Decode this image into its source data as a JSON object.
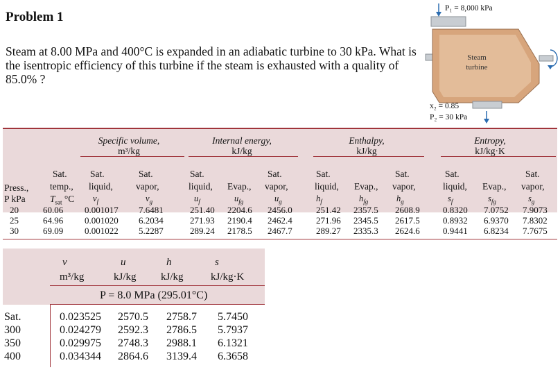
{
  "problem": {
    "title": "Problem 1",
    "text": "Steam at 8.00 MPa and 400°C is expanded in an adiabatic turbine to 30 kPa. What is the isentropic efficiency of this turbine if the steam is exhausted with a quality of 85.0% ?"
  },
  "diagram": {
    "inlet_label": "P₁ = 8,000 kPa",
    "body_label_1": "Steam",
    "body_label_2": "turbine",
    "outlet_quality": "x₂ = 0.85",
    "outlet_pressure": "P₂ = 30 kPa"
  },
  "sat_table": {
    "groups": {
      "specific_volume": "Specific volume,",
      "specific_volume_unit": "m³/kg",
      "internal_energy": "Internal energy,",
      "internal_energy_unit": "kJ/kg",
      "enthalpy": "Enthalpy,",
      "enthalpy_unit": "kJ/kg",
      "entropy": "Entropy,",
      "entropy_unit": "kJ/kg·K"
    },
    "col_heads": {
      "press_1": "Press.,",
      "press_2": "P kPa",
      "temp_1": "Sat.",
      "temp_2": "temp.,",
      "temp_3": "T",
      "vf_1": "Sat.",
      "vf_2": "liquid,",
      "vf_3": "v",
      "vg_1": "Sat.",
      "vg_2": "vapor,",
      "vg_3": "v",
      "uf_1": "Sat.",
      "uf_2": "liquid,",
      "uf_3": "u",
      "ufg_2": "Evap.,",
      "ufg_3": "u",
      "ug_1": "Sat.",
      "ug_2": "vapor,",
      "ug_3": "u",
      "hf_1": "Sat.",
      "hf_2": "liquid,",
      "hf_3": "h",
      "hfg_2": "Evap.,",
      "hfg_3": "h",
      "hg_1": "Sat.",
      "hg_2": "vapor,",
      "hg_3": "h",
      "sf_1": "Sat.",
      "sf_2": "liquid,",
      "sf_3": "s",
      "sfg_2": "Evap.,",
      "sfg_3": "s",
      "sg_1": "Sat.",
      "sg_2": "vapor,",
      "sg_3": "s"
    },
    "rows": [
      [
        "20",
        "60.06",
        "0.001017",
        "7.6481",
        "251.40",
        "2204.6",
        "2456.0",
        "251.42",
        "2357.5",
        "2608.9",
        "0.8320",
        "7.0752",
        "7.9073"
      ],
      [
        "25",
        "64.96",
        "0.001020",
        "6.2034",
        "271.93",
        "2190.4",
        "2462.4",
        "271.96",
        "2345.5",
        "2617.5",
        "0.8932",
        "6.9370",
        "7.8302"
      ],
      [
        "30",
        "69.09",
        "0.001022",
        "5.2287",
        "289.24",
        "2178.5",
        "2467.7",
        "289.27",
        "2335.3",
        "2624.6",
        "0.9441",
        "6.8234",
        "7.7675"
      ]
    ]
  },
  "sh_table": {
    "sym_v": "v",
    "sym_u": "u",
    "sym_h": "h",
    "sym_s": "s",
    "unit_v": "m³/kg",
    "unit_u": "kJ/kg",
    "unit_h": "kJ/kg",
    "unit_s": "kJ/kg·K",
    "pressure_heading": "P = 8.0 MPa (295.01°C)",
    "rows": [
      [
        "Sat.",
        "0.023525",
        "2570.5",
        "2758.7",
        "5.7450"
      ],
      [
        "300",
        "0.024279",
        "2592.3",
        "2786.5",
        "5.7937"
      ],
      [
        "350",
        "0.029975",
        "2748.3",
        "2988.1",
        "6.1321"
      ],
      [
        "400",
        "0.034344",
        "2864.6",
        "3139.4",
        "6.3658"
      ]
    ]
  }
}
